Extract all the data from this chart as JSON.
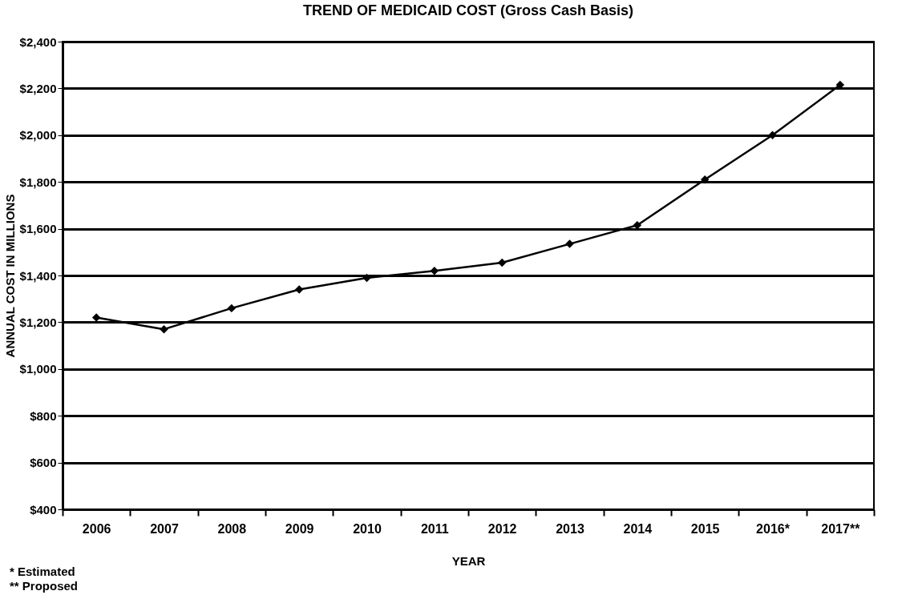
{
  "chart_data": {
    "type": "line",
    "title": "TREND OF MEDICAID COST (Gross Cash Basis)",
    "xlabel": "YEAR",
    "ylabel": "ANNUAL COST IN MILLIONS",
    "categories": [
      "2006",
      "2007",
      "2008",
      "2009",
      "2010",
      "2011",
      "2012",
      "2013",
      "2014",
      "2015",
      "2016*",
      "2017**"
    ],
    "series": [
      {
        "color": "#000000",
        "values": [
          1220,
          1170,
          1260,
          1340,
          1390,
          1420,
          1455,
          1535,
          1615,
          1810,
          2000,
          2215
        ]
      }
    ],
    "ylim": [
      400,
      2400
    ],
    "yticks": [
      {
        "value": 400,
        "label": "$400"
      },
      {
        "value": 600,
        "label": "$600"
      },
      {
        "value": 800,
        "label": "$800"
      },
      {
        "value": 1000,
        "label": "$1,000"
      },
      {
        "value": 1200,
        "label": "$1,200"
      },
      {
        "value": 1400,
        "label": "$1,400"
      },
      {
        "value": 1600,
        "label": "$1,600"
      },
      {
        "value": 1800,
        "label": "$1,800"
      },
      {
        "value": 2000,
        "label": "$2,000"
      },
      {
        "value": 2200,
        "label": "$2,200"
      },
      {
        "value": 2400,
        "label": "$2,400"
      }
    ],
    "grid": "y",
    "marker": "diamond",
    "line_style": "solid",
    "legend": false,
    "annotations": [
      "* Estimated",
      "** Proposed"
    ]
  }
}
